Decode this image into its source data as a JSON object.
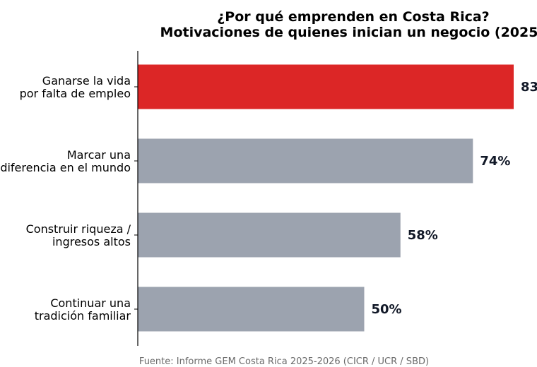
{
  "chart_data": {
    "type": "bar",
    "orientation": "horizontal",
    "title": [
      "¿Por qué emprenden en Costa Rica?",
      "Motivaciones de quienes inician un negocio (2025"
    ],
    "categories": [
      [
        "Ganarse la vida",
        "por falta de empleo"
      ],
      [
        "Marcar una",
        "diferencia en el mundo"
      ],
      [
        "Construir riqueza /",
        "ingresos altos"
      ],
      [
        "Continuar una",
        "tradición familiar"
      ]
    ],
    "values": [
      83,
      74,
      58,
      50
    ],
    "data_labels": [
      "83",
      "74%",
      "58%",
      "50%"
    ],
    "bar_colors": [
      "#dc2626",
      "#9ca3af",
      "#9ca3af",
      "#9ca3af"
    ],
    "xlim": [
      0,
      83
    ],
    "grid": false,
    "source": "Fuente: Informe GEM Costa Rica 2025-2026 (CICR / UCR / SBD)"
  }
}
